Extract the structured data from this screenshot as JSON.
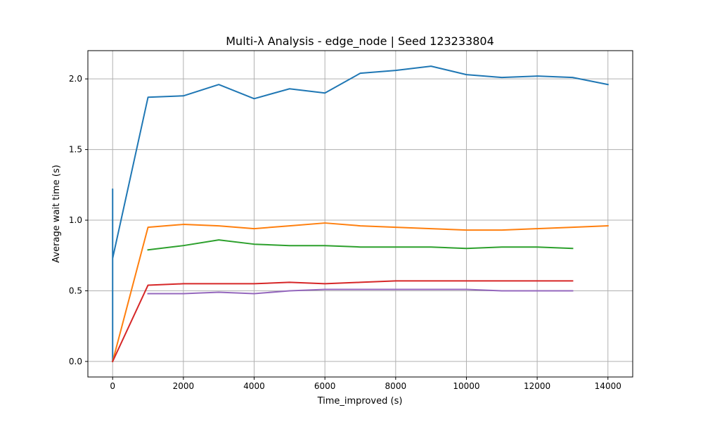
{
  "chart_data": {
    "type": "line",
    "title": "Multi-λ Analysis - edge_node | Seed 123233804",
    "xlabel": "Time_improved (s)",
    "ylabel": "Average wait time (s)",
    "xlim": [
      -700,
      14700
    ],
    "ylim": [
      -0.11,
      2.2
    ],
    "xticks": [
      0,
      2000,
      4000,
      6000,
      8000,
      10000,
      12000,
      14000
    ],
    "yticks": [
      0.0,
      0.5,
      1.0,
      1.5,
      2.0
    ],
    "xtick_labels": [
      "0",
      "2000",
      "4000",
      "6000",
      "8000",
      "10000",
      "12000",
      "14000"
    ],
    "ytick_labels": [
      "0.0",
      "0.5",
      "1.0",
      "1.5",
      "2.0"
    ],
    "grid": true,
    "legend": "none",
    "series": [
      {
        "color": "#1f77b4",
        "points": [
          [
            0,
            0.72
          ],
          [
            0,
            0.0
          ],
          [
            0,
            1.22
          ],
          [
            0,
            0.67
          ],
          [
            0,
            0.73
          ],
          [
            1000,
            1.87
          ],
          [
            2000,
            1.88
          ],
          [
            3000,
            1.96
          ],
          [
            4000,
            1.86
          ],
          [
            5000,
            1.93
          ],
          [
            6000,
            1.9
          ],
          [
            7000,
            2.04
          ],
          [
            8000,
            2.06
          ],
          [
            9000,
            2.09
          ],
          [
            10000,
            2.03
          ],
          [
            11000,
            2.01
          ],
          [
            12000,
            2.02
          ],
          [
            13000,
            2.01
          ],
          [
            14000,
            1.96
          ]
        ]
      },
      {
        "color": "#ff7f0e",
        "points": [
          [
            0,
            0.0
          ],
          [
            1000,
            0.95
          ],
          [
            2000,
            0.97
          ],
          [
            3000,
            0.96
          ],
          [
            4000,
            0.94
          ],
          [
            5000,
            0.96
          ],
          [
            6000,
            0.98
          ],
          [
            7000,
            0.96
          ],
          [
            8000,
            0.95
          ],
          [
            9000,
            0.94
          ],
          [
            10000,
            0.93
          ],
          [
            11000,
            0.93
          ],
          [
            12000,
            0.94
          ],
          [
            13000,
            0.95
          ],
          [
            14000,
            0.96
          ]
        ]
      },
      {
        "color": "#2ca02c",
        "points": [
          [
            1000,
            0.79
          ],
          [
            2000,
            0.82
          ],
          [
            3000,
            0.86
          ],
          [
            4000,
            0.83
          ],
          [
            5000,
            0.82
          ],
          [
            6000,
            0.82
          ],
          [
            7000,
            0.81
          ],
          [
            8000,
            0.81
          ],
          [
            9000,
            0.81
          ],
          [
            10000,
            0.8
          ],
          [
            11000,
            0.81
          ],
          [
            12000,
            0.81
          ],
          [
            13000,
            0.8
          ]
        ]
      },
      {
        "color": "#d62728",
        "points": [
          [
            0,
            0.0
          ],
          [
            1000,
            0.54
          ],
          [
            2000,
            0.55
          ],
          [
            3000,
            0.55
          ],
          [
            4000,
            0.55
          ],
          [
            5000,
            0.56
          ],
          [
            6000,
            0.55
          ],
          [
            7000,
            0.56
          ],
          [
            8000,
            0.57
          ],
          [
            9000,
            0.57
          ],
          [
            10000,
            0.57
          ],
          [
            11000,
            0.57
          ],
          [
            12000,
            0.57
          ],
          [
            13000,
            0.57
          ]
        ]
      },
      {
        "color": "#9467bd",
        "points": [
          [
            1000,
            0.48
          ],
          [
            2000,
            0.48
          ],
          [
            3000,
            0.49
          ],
          [
            4000,
            0.48
          ],
          [
            5000,
            0.5
          ],
          [
            6000,
            0.51
          ],
          [
            7000,
            0.51
          ],
          [
            8000,
            0.51
          ],
          [
            9000,
            0.51
          ],
          [
            10000,
            0.51
          ],
          [
            11000,
            0.5
          ],
          [
            12000,
            0.5
          ],
          [
            13000,
            0.5
          ]
        ]
      }
    ]
  }
}
